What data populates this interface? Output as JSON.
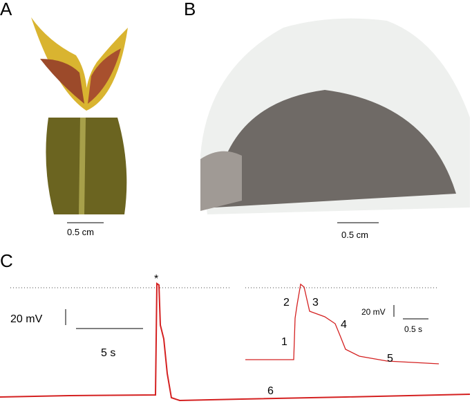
{
  "panels": [
    {
      "label": "A",
      "scale_bar": "0.5 cm"
    },
    {
      "label": "B",
      "scale_bar": "0.5 cm"
    },
    {
      "label": "C",
      "voltage_scale": "20 mV",
      "time_scale": "5 s",
      "peak_marker": "*",
      "trace_label": "6",
      "inset": {
        "voltage_scale": "20 mV",
        "time_scale": "0.5 s",
        "phase_labels": [
          "1",
          "2",
          "3",
          "4",
          "5"
        ]
      }
    }
  ]
}
